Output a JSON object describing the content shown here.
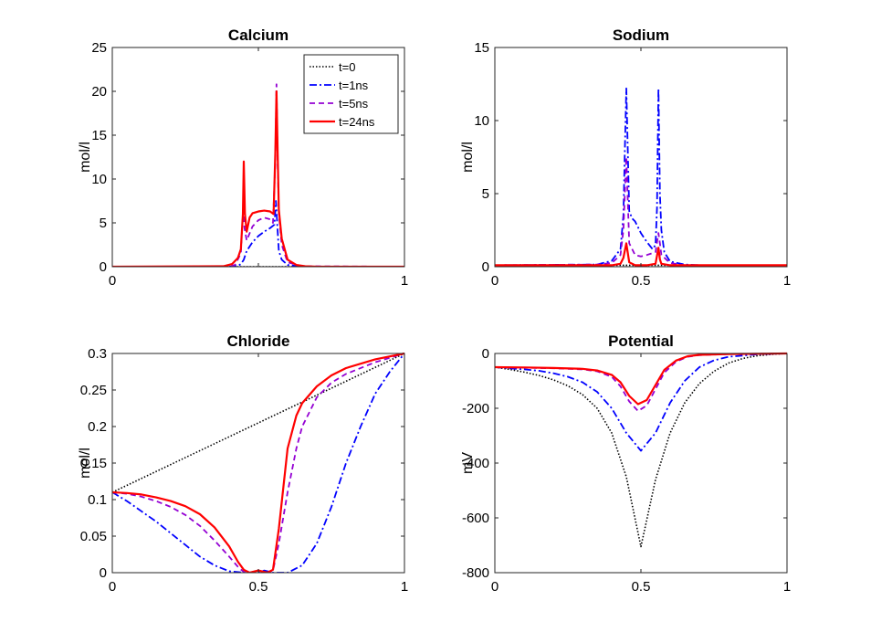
{
  "chart_data": [
    {
      "type": "line",
      "title": "Calcium",
      "xlabel": "",
      "ylabel": "mol/l",
      "xlim": [
        0,
        1
      ],
      "ylim": [
        0,
        25
      ],
      "xticks": [
        0,
        0.5,
        1
      ],
      "yticks": [
        0,
        5,
        10,
        15,
        20,
        25
      ],
      "xtick_labels": [
        "0",
        "",
        "1"
      ],
      "ytick_labels": [
        "0",
        "5",
        "10",
        "15",
        "20",
        "25"
      ],
      "legend": {
        "placement": "top-right",
        "entries": [
          "t=0",
          "t=1ns",
          "t=5ns",
          "t=24ns"
        ]
      },
      "series": [
        {
          "name": "t=0",
          "x": [
            0,
            1
          ],
          "y": [
            0,
            0
          ]
        },
        {
          "name": "t=1ns",
          "x": [
            0,
            0.4,
            0.43,
            0.44,
            0.45,
            0.46,
            0.48,
            0.5,
            0.52,
            0.54,
            0.555,
            0.56,
            0.565,
            0.57,
            0.58,
            0.6,
            0.65,
            1
          ],
          "y": [
            0,
            0,
            0.1,
            0.3,
            0.8,
            1.8,
            2.8,
            3.5,
            4.0,
            4.4,
            4.8,
            7.5,
            4.6,
            1.8,
            0.8,
            0.2,
            0,
            0
          ]
        },
        {
          "name": "t=5ns",
          "x": [
            0,
            0.4,
            0.42,
            0.44,
            0.448,
            0.452,
            0.46,
            0.47,
            0.48,
            0.5,
            0.52,
            0.54,
            0.55,
            0.558,
            0.562,
            0.566,
            0.57,
            0.58,
            0.6,
            0.65,
            1
          ],
          "y": [
            0,
            0,
            0.2,
            1.5,
            6.8,
            4.5,
            3.0,
            3.8,
            4.6,
            5.3,
            5.6,
            5.4,
            5.0,
            12,
            20.8,
            12,
            6,
            2.5,
            0.5,
            0.05,
            0
          ]
        },
        {
          "name": "t=24ns",
          "x": [
            0,
            0.38,
            0.41,
            0.43,
            0.44,
            0.447,
            0.45,
            0.454,
            0.46,
            0.47,
            0.48,
            0.5,
            0.52,
            0.54,
            0.552,
            0.558,
            0.562,
            0.566,
            0.57,
            0.58,
            0.6,
            0.63,
            0.66,
            0.7,
            1
          ],
          "y": [
            0,
            0.05,
            0.3,
            1.0,
            2.0,
            6.0,
            12.0,
            6.0,
            4.0,
            5.6,
            6.1,
            6.3,
            6.4,
            6.3,
            6.0,
            13,
            20.0,
            13,
            6.5,
            3.2,
            0.8,
            0.2,
            0.05,
            0,
            0
          ]
        }
      ]
    },
    {
      "type": "line",
      "title": "Sodium",
      "xlabel": "",
      "ylabel": "mol/l",
      "xlim": [
        0,
        1
      ],
      "ylim": [
        0,
        15
      ],
      "xticks": [
        0,
        0.5,
        1
      ],
      "yticks": [
        0,
        5,
        10,
        15
      ],
      "xtick_labels": [
        "0",
        "0.5",
        "1"
      ],
      "ytick_labels": [
        "0",
        "5",
        "10",
        "15"
      ],
      "series": [
        {
          "name": "t=0",
          "x": [
            0,
            0.47,
            0.5,
            0.53,
            1
          ],
          "y": [
            0.1,
            0.1,
            0.02,
            0.1,
            0.1
          ]
        },
        {
          "name": "t=1ns",
          "x": [
            0,
            0.35,
            0.4,
            0.43,
            0.44,
            0.445,
            0.45,
            0.455,
            0.46,
            0.47,
            0.48,
            0.5,
            0.52,
            0.54,
            0.55,
            0.555,
            0.56,
            0.565,
            0.57,
            0.58,
            0.6,
            0.65,
            0.7,
            1
          ],
          "y": [
            0.1,
            0.15,
            0.4,
            1.2,
            3.5,
            8.0,
            12.2,
            8.0,
            3.8,
            3.3,
            3.1,
            2.3,
            1.7,
            1.2,
            1.5,
            4.0,
            12.2,
            5.0,
            2.5,
            1.0,
            0.35,
            0.15,
            0.1,
            0.1
          ]
        },
        {
          "name": "t=5ns",
          "x": [
            0,
            0.35,
            0.4,
            0.43,
            0.44,
            0.45,
            0.46,
            0.48,
            0.5,
            0.52,
            0.55,
            0.56,
            0.565,
            0.57,
            0.6,
            0.65,
            1
          ],
          "y": [
            0.1,
            0.15,
            0.25,
            0.8,
            2.5,
            7.5,
            1.6,
            0.8,
            0.7,
            0.8,
            1.0,
            2.3,
            1.6,
            0.8,
            0.25,
            0.1,
            0.1
          ]
        },
        {
          "name": "t=24ns",
          "x": [
            0,
            0.4,
            0.43,
            0.44,
            0.45,
            0.46,
            0.48,
            0.5,
            0.52,
            0.55,
            0.56,
            0.565,
            0.57,
            0.6,
            1
          ],
          "y": [
            0.1,
            0.1,
            0.2,
            0.6,
            1.6,
            0.3,
            0.1,
            0.1,
            0.1,
            0.2,
            1.3,
            0.5,
            0.2,
            0.1,
            0.1
          ]
        }
      ]
    },
    {
      "type": "line",
      "title": "Chloride",
      "xlabel": "",
      "ylabel": "mol/l",
      "xlim": [
        0,
        1
      ],
      "ylim": [
        0,
        0.3
      ],
      "xticks": [
        0,
        0.5,
        1
      ],
      "yticks": [
        0,
        0.05,
        0.1,
        0.15,
        0.2,
        0.25,
        0.3
      ],
      "xtick_labels": [
        "0",
        "0.5",
        "1"
      ],
      "ytick_labels": [
        "0",
        "0.05",
        "0.1",
        "0.15",
        "0.2",
        "0.25",
        "0.3"
      ],
      "series": [
        {
          "name": "t=0",
          "x": [
            0,
            1
          ],
          "y": [
            0.11,
            0.3
          ]
        },
        {
          "name": "t=1ns",
          "x": [
            0,
            0.05,
            0.1,
            0.15,
            0.2,
            0.25,
            0.3,
            0.35,
            0.4,
            0.45,
            0.5,
            0.52,
            0.55,
            0.6,
            0.65,
            0.7,
            0.75,
            0.8,
            0.85,
            0.9,
            0.95,
            1
          ],
          "y": [
            0.11,
            0.098,
            0.084,
            0.07,
            0.054,
            0.038,
            0.022,
            0.01,
            0.002,
            0,
            0,
            0.003,
            0,
            0,
            0.01,
            0.04,
            0.09,
            0.15,
            0.2,
            0.245,
            0.275,
            0.3
          ]
        },
        {
          "name": "t=5ns",
          "x": [
            0,
            0.05,
            0.1,
            0.15,
            0.2,
            0.25,
            0.3,
            0.35,
            0.4,
            0.43,
            0.45,
            0.47,
            0.5,
            0.53,
            0.55,
            0.57,
            0.6,
            0.63,
            0.65,
            0.7,
            0.75,
            0.8,
            0.9,
            1
          ],
          "y": [
            0.11,
            0.108,
            0.104,
            0.098,
            0.09,
            0.079,
            0.064,
            0.044,
            0.022,
            0.008,
            0.001,
            0,
            0.003,
            0,
            0.003,
            0.04,
            0.11,
            0.17,
            0.2,
            0.24,
            0.26,
            0.272,
            0.288,
            0.3
          ]
        },
        {
          "name": "t=24ns",
          "x": [
            0,
            0.05,
            0.1,
            0.15,
            0.2,
            0.25,
            0.3,
            0.35,
            0.4,
            0.43,
            0.45,
            0.47,
            0.5,
            0.53,
            0.55,
            0.57,
            0.6,
            0.63,
            0.65,
            0.7,
            0.75,
            0.8,
            0.9,
            1
          ],
          "y": [
            0.11,
            0.109,
            0.107,
            0.103,
            0.098,
            0.091,
            0.08,
            0.062,
            0.036,
            0.015,
            0.004,
            0,
            0.003,
            0,
            0.004,
            0.06,
            0.17,
            0.215,
            0.232,
            0.255,
            0.27,
            0.28,
            0.292,
            0.3
          ]
        }
      ]
    },
    {
      "type": "line",
      "title": "Potential",
      "xlabel": "",
      "ylabel": "mV",
      "xlim": [
        0,
        1
      ],
      "ylim": [
        -800,
        0
      ],
      "xticks": [
        0,
        0.5,
        1
      ],
      "yticks": [
        -800,
        -600,
        -400,
        -200,
        0
      ],
      "xtick_labels": [
        "0",
        "0.5",
        "1"
      ],
      "ytick_labels": [
        "-800",
        "-600",
        "-400",
        "-200",
        "0"
      ],
      "series": [
        {
          "name": "t=0",
          "x": [
            0,
            0.05,
            0.1,
            0.15,
            0.2,
            0.25,
            0.3,
            0.35,
            0.4,
            0.45,
            0.5,
            0.55,
            0.6,
            0.65,
            0.7,
            0.75,
            0.8,
            0.85,
            0.9,
            0.95,
            1
          ],
          "y": [
            -50,
            -58,
            -68,
            -80,
            -96,
            -118,
            -150,
            -200,
            -290,
            -450,
            -705,
            -460,
            -290,
            -180,
            -110,
            -65,
            -35,
            -18,
            -8,
            -3,
            0
          ]
        },
        {
          "name": "t=1ns",
          "x": [
            0,
            0.05,
            0.1,
            0.15,
            0.2,
            0.25,
            0.3,
            0.35,
            0.4,
            0.45,
            0.5,
            0.55,
            0.6,
            0.65,
            0.7,
            0.75,
            0.8,
            0.9,
            1
          ],
          "y": [
            -50,
            -54,
            -58,
            -63,
            -72,
            -85,
            -105,
            -140,
            -200,
            -290,
            -355,
            -290,
            -180,
            -100,
            -50,
            -25,
            -12,
            -3,
            0
          ]
        },
        {
          "name": "t=5ns",
          "x": [
            0,
            0.1,
            0.2,
            0.3,
            0.35,
            0.4,
            0.43,
            0.46,
            0.49,
            0.52,
            0.55,
            0.58,
            0.62,
            0.66,
            0.7,
            0.8,
            0.9,
            1
          ],
          "y": [
            -50,
            -52,
            -54,
            -58,
            -65,
            -85,
            -120,
            -175,
            -210,
            -190,
            -130,
            -70,
            -30,
            -12,
            -6,
            -2,
            -1,
            0
          ]
        },
        {
          "name": "t=24ns",
          "x": [
            0,
            0.1,
            0.2,
            0.3,
            0.35,
            0.4,
            0.43,
            0.46,
            0.49,
            0.52,
            0.55,
            0.58,
            0.62,
            0.66,
            0.7,
            0.8,
            0.9,
            1
          ],
          "y": [
            -50,
            -51,
            -53,
            -56,
            -62,
            -78,
            -105,
            -155,
            -185,
            -170,
            -115,
            -60,
            -26,
            -10,
            -5,
            -2,
            -1,
            0
          ]
        }
      ]
    }
  ],
  "series_styles": [
    {
      "name": "t=0",
      "color": "#000000",
      "dash": "1.5,2",
      "width": 1.6
    },
    {
      "name": "t=1ns",
      "color": "#0000ff",
      "dash": "8,3,2,3",
      "width": 1.8
    },
    {
      "name": "t=5ns",
      "color": "#9400d3",
      "dash": "6,4",
      "width": 1.8
    },
    {
      "name": "t=24ns",
      "color": "#ff0000",
      "dash": "",
      "width": 2.2
    }
  ]
}
